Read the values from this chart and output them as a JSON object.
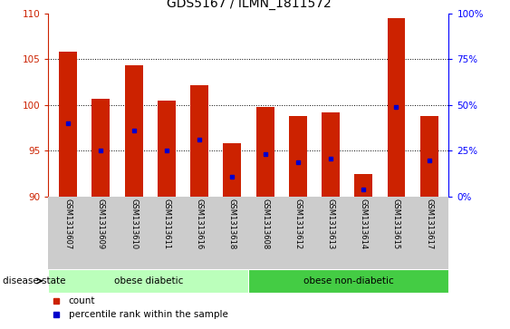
{
  "title": "GDS5167 / ILMN_1811572",
  "samples": [
    "GSM1313607",
    "GSM1313609",
    "GSM1313610",
    "GSM1313611",
    "GSM1313616",
    "GSM1313618",
    "GSM1313608",
    "GSM1313612",
    "GSM1313613",
    "GSM1313614",
    "GSM1313615",
    "GSM1313617"
  ],
  "bar_tops": [
    105.8,
    100.7,
    104.3,
    100.5,
    102.2,
    95.8,
    99.8,
    98.8,
    99.2,
    92.5,
    109.5,
    98.8
  ],
  "bar_bottoms": [
    90,
    90,
    90,
    90,
    90,
    90,
    90,
    90,
    90,
    90,
    90,
    90
  ],
  "percentile_values": [
    98.0,
    95.0,
    97.2,
    95.0,
    96.2,
    92.2,
    94.6,
    93.8,
    94.2,
    90.8,
    99.8,
    94.0
  ],
  "ylim_left": [
    90,
    110
  ],
  "yticks_left": [
    90,
    95,
    100,
    105,
    110
  ],
  "ylim_right": [
    0,
    100
  ],
  "yticks_right": [
    0,
    25,
    50,
    75,
    100
  ],
  "bar_color": "#cc2200",
  "percentile_color": "#0000cc",
  "tick_area_color": "#cccccc",
  "group1_color": "#bbffbb",
  "group2_color": "#44cc44",
  "group1_label": "obese diabetic",
  "group2_label": "obese non-diabetic",
  "group1_samples": 6,
  "group2_samples": 6,
  "disease_state_label": "disease state",
  "legend_count_label": "count",
  "legend_percentile_label": "percentile rank within the sample",
  "bar_width": 0.55
}
